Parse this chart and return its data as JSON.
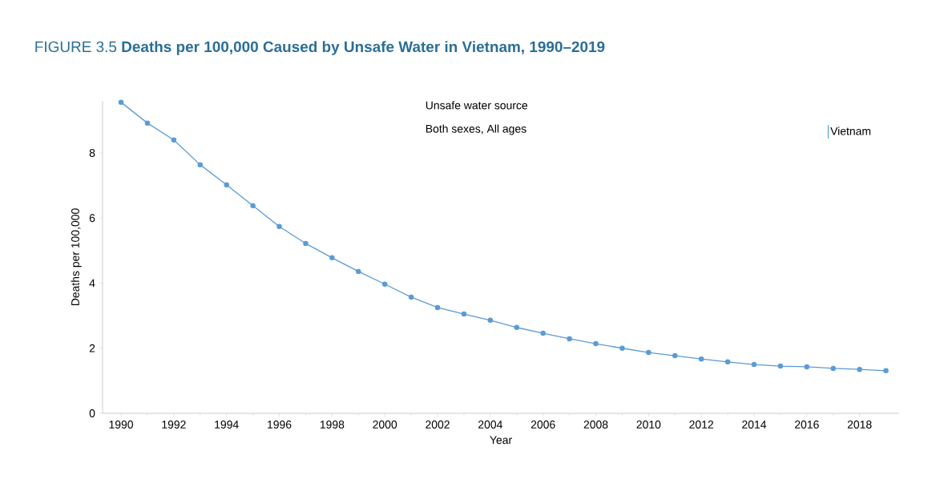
{
  "chart_data": {
    "type": "line",
    "title": "FIGURE 3.5 **Deaths per 100,000 Caused by Unsafe Water in Vietnam, 1990–2019**",
    "annotations": [
      "Unsafe water source",
      "Both sexes, All ages"
    ],
    "xlabel": "Year",
    "ylabel": "Deaths per 100,000",
    "x": [
      1990,
      1991,
      1992,
      1993,
      1994,
      1995,
      1996,
      1997,
      1998,
      1999,
      2000,
      2001,
      2002,
      2003,
      2004,
      2005,
      2006,
      2007,
      2008,
      2009,
      2010,
      2011,
      2012,
      2013,
      2014,
      2015,
      2016,
      2017,
      2018,
      2019
    ],
    "series": [
      {
        "name": "Vietnam",
        "color": "#5b9bd5",
        "values": [
          9.56,
          8.92,
          8.4,
          7.64,
          7.02,
          6.38,
          5.74,
          5.22,
          4.78,
          4.36,
          3.97,
          3.57,
          3.25,
          3.05,
          2.86,
          2.64,
          2.46,
          2.29,
          2.14,
          2.0,
          1.87,
          1.77,
          1.67,
          1.58,
          1.5,
          1.45,
          1.43,
          1.38,
          1.35,
          1.31
        ]
      }
    ],
    "xlim": [
      1989.3,
      2019.5
    ],
    "ylim": [
      0,
      9.6
    ],
    "xticks": [
      1990,
      1992,
      1994,
      1996,
      1998,
      2000,
      2002,
      2004,
      2006,
      2008,
      2010,
      2012,
      2014,
      2016,
      2018
    ],
    "yticks": [
      0,
      2,
      4,
      6,
      8
    ],
    "grid": false,
    "legend": "top right",
    "marker": "circle",
    "line_style": "solid"
  }
}
